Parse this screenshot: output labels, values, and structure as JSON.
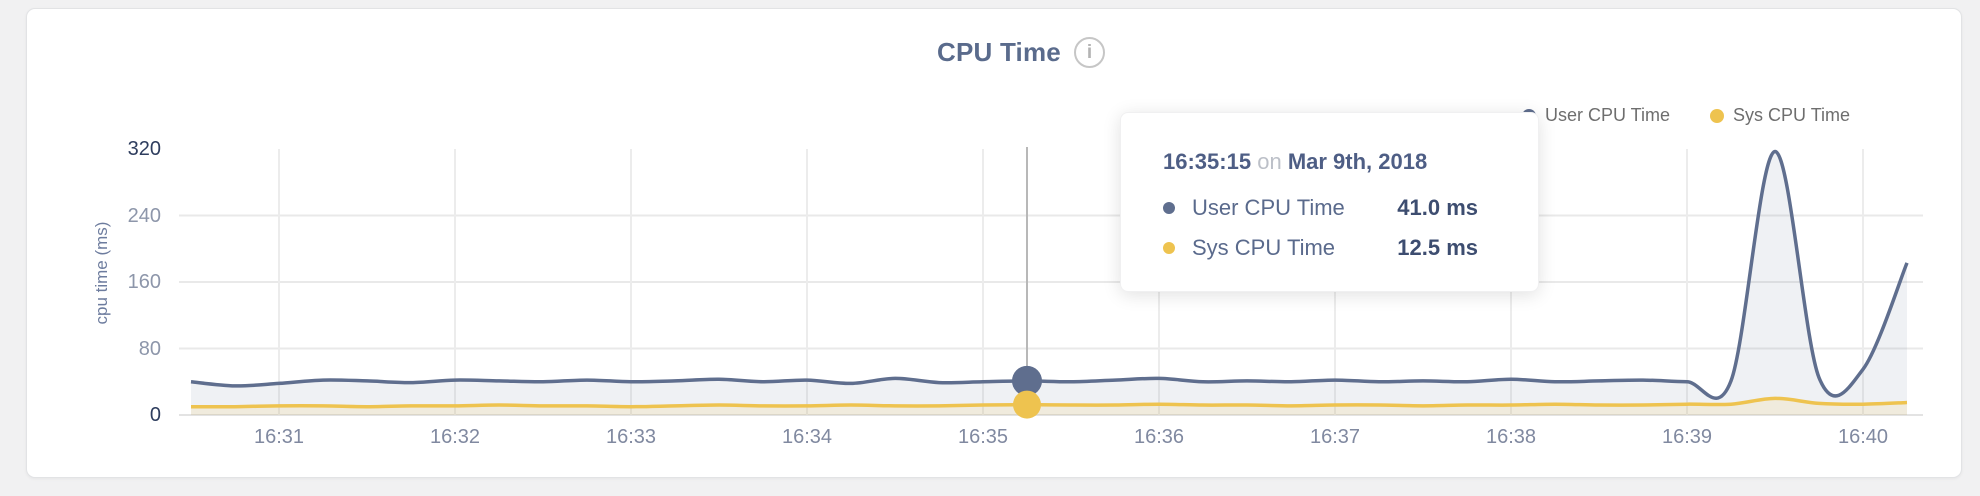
{
  "header": {
    "title": "CPU Time",
    "info_glyph": "i"
  },
  "legend": {
    "items": [
      {
        "label": "User CPU Time",
        "color": "#5f6e8e"
      },
      {
        "label": "Sys CPU Time",
        "color": "#eec34f"
      }
    ]
  },
  "y_axis": {
    "title": "cpu time (ms)",
    "ticks": [
      {
        "label": "0",
        "strong": true
      },
      {
        "label": "80",
        "strong": false
      },
      {
        "label": "160",
        "strong": false
      },
      {
        "label": "240",
        "strong": false
      },
      {
        "label": "320",
        "strong": true
      }
    ]
  },
  "x_axis": {
    "ticks": [
      "16:31",
      "16:32",
      "16:33",
      "16:34",
      "16:35",
      "16:36",
      "16:37",
      "16:38",
      "16:39",
      "16:40"
    ]
  },
  "tooltip": {
    "time": "16:35:15",
    "connector": "on",
    "date": "Mar 9th, 2018",
    "rows": [
      {
        "label": "User CPU Time",
        "value": "41.0 ms"
      },
      {
        "label": "Sys CPU Time",
        "value": "12.5 ms"
      }
    ]
  },
  "chart_data": {
    "type": "area",
    "title": "CPU Time",
    "ylabel": "cpu time (ms)",
    "ylim": [
      0,
      320
    ],
    "y_ticks": [
      0,
      80,
      160,
      240,
      320
    ],
    "grid": true,
    "legend_position": "top-right",
    "x_start": "16:30:30",
    "x_interval_seconds": 15,
    "x_tick_labels": [
      "16:31",
      "16:32",
      "16:33",
      "16:34",
      "16:35",
      "16:36",
      "16:37",
      "16:38",
      "16:39",
      "16:40"
    ],
    "x_tick_indices": [
      2,
      6,
      10,
      14,
      18,
      22,
      26,
      30,
      34,
      38
    ],
    "active_point": {
      "index": 19,
      "time": "16:35:15",
      "date": "Mar 9th, 2018",
      "user_ms": 41.0,
      "sys_ms": 12.5
    },
    "series": [
      {
        "name": "User CPU Time",
        "color": "#5f6e8e",
        "fill": "rgba(99,113,143,0.10)",
        "values": [
          40,
          35,
          38,
          42,
          41,
          39,
          42,
          41,
          40,
          42,
          40,
          41,
          43,
          40,
          42,
          38,
          44,
          39,
          40,
          41,
          40,
          42,
          44,
          40,
          41,
          40,
          42,
          40,
          41,
          40,
          43,
          40,
          41,
          42,
          40,
          41,
          317,
          45,
          55,
          183
        ]
      },
      {
        "name": "Sys CPU Time",
        "color": "#eec34f",
        "fill": "rgba(197,177,120,0.25)",
        "values": [
          10,
          10,
          11,
          11,
          10,
          11,
          11,
          12,
          11,
          11,
          10,
          11,
          12,
          11,
          11,
          12,
          11,
          11,
          12,
          12.5,
          12,
          12,
          13,
          12,
          12,
          11,
          12,
          12,
          11,
          12,
          12,
          13,
          12,
          12,
          13,
          13,
          20,
          14,
          13,
          15
        ]
      }
    ]
  }
}
